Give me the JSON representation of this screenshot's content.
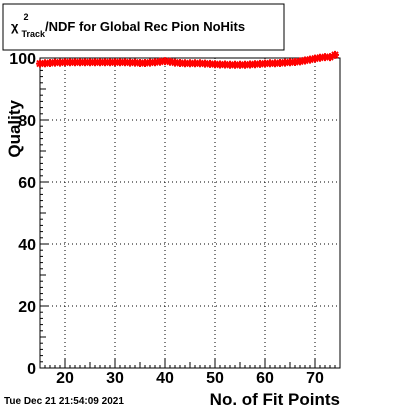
{
  "title": {
    "chi": "χ",
    "superscript": "2",
    "subscript": "Track",
    "rest": "/NDF for Global Rec Pion NoHits"
  },
  "timestamp": "Tue Dec 21 21:54:09 2021",
  "chart_data": {
    "type": "line",
    "xlabel": "No. of Fit Points",
    "ylabel": "Quality",
    "xlim": [
      15,
      75
    ],
    "ylim": [
      0,
      100
    ],
    "x_ticks": [
      20,
      30,
      40,
      50,
      60,
      70
    ],
    "y_ticks": [
      0,
      20,
      40,
      60,
      80,
      100
    ],
    "grid": true,
    "marker_color": "#ff0000",
    "series": [
      {
        "x": [
          15,
          16,
          17,
          18,
          19,
          20,
          21,
          22,
          23,
          24,
          25,
          26,
          27,
          28,
          29,
          30,
          31,
          32,
          33,
          34,
          35,
          36,
          37,
          38,
          39,
          40,
          41,
          42,
          43,
          44,
          45,
          46,
          47,
          48,
          49,
          50,
          51,
          52,
          53,
          54,
          55,
          56,
          57,
          58,
          59,
          60,
          61,
          62,
          63,
          64,
          65,
          66,
          67,
          68,
          69,
          70,
          71,
          72,
          73,
          74
        ],
        "values": [
          98.2,
          98.3,
          98.4,
          98.5,
          98.5,
          98.6,
          98.6,
          98.6,
          98.6,
          98.6,
          98.6,
          98.6,
          98.6,
          98.6,
          98.6,
          98.6,
          98.6,
          98.6,
          98.5,
          98.5,
          98.4,
          98.4,
          98.5,
          98.6,
          98.8,
          99.0,
          98.8,
          98.5,
          98.4,
          98.3,
          98.3,
          98.3,
          98.3,
          98.2,
          98.1,
          98.0,
          97.9,
          97.9,
          97.8,
          97.8,
          97.8,
          97.8,
          97.9,
          98.0,
          98.1,
          98.2,
          98.3,
          98.3,
          98.4,
          98.5,
          98.6,
          98.7,
          98.9,
          99.2,
          99.5,
          99.8,
          100.1,
          100.3,
          100.3,
          101.0
        ]
      }
    ]
  }
}
